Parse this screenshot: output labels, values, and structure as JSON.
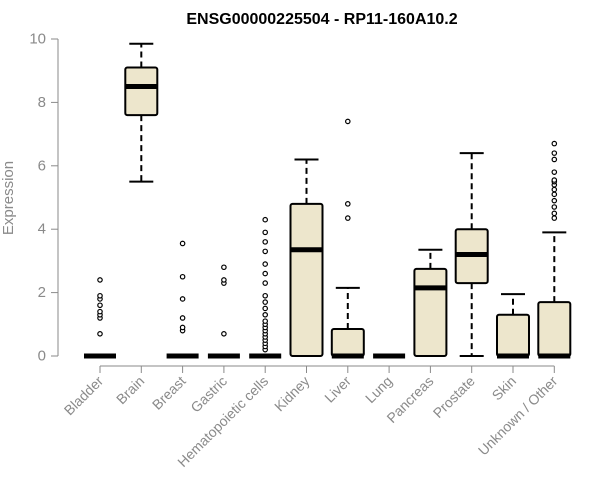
{
  "chart_data": {
    "type": "boxplot",
    "title": "ENSG00000225504 - RP11-160A10.2",
    "xlabel": "",
    "ylabel": "Expression",
    "ylim": [
      0,
      10
    ],
    "yticks": [
      "0",
      "2",
      "4",
      "6",
      "8",
      "10"
    ],
    "ytick_values": [
      0,
      2,
      4,
      6,
      8,
      10
    ],
    "box_fill": "#ede6cc",
    "categories": [
      "Bladder",
      "Brain",
      "Breast",
      "Gastric",
      "Hematopoietic cells",
      "Kidney",
      "Liver",
      "Lung",
      "Pancreas",
      "Prostate",
      "Skin",
      "Unknown / Other"
    ],
    "boxes": [
      {
        "q1": 0,
        "median": 0,
        "q3": 0,
        "whisker_low": 0,
        "whisker_high": 0,
        "outliers": [
          0.7,
          1.2,
          1.3,
          1.4,
          1.6,
          1.8,
          1.9,
          2.4
        ]
      },
      {
        "q1": 7.6,
        "median": 8.5,
        "q3": 9.1,
        "whisker_low": 5.5,
        "whisker_high": 9.85,
        "outliers": []
      },
      {
        "q1": 0,
        "median": 0,
        "q3": 0,
        "whisker_low": 0,
        "whisker_high": 0,
        "outliers": [
          0.8,
          0.9,
          1.2,
          1.8,
          2.5,
          3.55
        ]
      },
      {
        "q1": 0,
        "median": 0,
        "q3": 0,
        "whisker_low": 0,
        "whisker_high": 0,
        "outliers": [
          0.7,
          2.3,
          2.4,
          2.8
        ]
      },
      {
        "q1": 0,
        "median": 0,
        "q3": 0,
        "whisker_low": 0,
        "whisker_high": 0,
        "outliers": [
          0.2,
          0.3,
          0.4,
          0.5,
          0.6,
          0.7,
          0.8,
          0.9,
          1.0,
          1.1,
          1.3,
          1.5,
          1.7,
          1.9,
          2.3,
          2.6,
          2.9,
          3.3,
          3.6,
          3.9,
          4.3
        ]
      },
      {
        "q1": 0,
        "median": 3.35,
        "q3": 4.8,
        "whisker_low": 0,
        "whisker_high": 6.2,
        "outliers": []
      },
      {
        "q1": 0,
        "median": 0,
        "q3": 0.85,
        "whisker_low": 0,
        "whisker_high": 2.15,
        "outliers": [
          4.35,
          4.8,
          7.4
        ]
      },
      {
        "q1": 0,
        "median": 0,
        "q3": 0,
        "whisker_low": 0,
        "whisker_high": 0,
        "outliers": []
      },
      {
        "q1": 0,
        "median": 2.15,
        "q3": 2.75,
        "whisker_low": 0,
        "whisker_high": 3.35,
        "outliers": []
      },
      {
        "q1": 2.3,
        "median": 3.2,
        "q3": 4.0,
        "whisker_low": 0,
        "whisker_high": 6.4,
        "outliers": []
      },
      {
        "q1": 0,
        "median": 0,
        "q3": 1.3,
        "whisker_low": 0,
        "whisker_high": 1.95,
        "outliers": []
      },
      {
        "q1": 0,
        "median": 0,
        "q3": 1.7,
        "whisker_low": 0,
        "whisker_high": 3.9,
        "outliers": [
          4.35,
          4.5,
          4.7,
          4.9,
          5.1,
          5.25,
          5.4,
          5.5,
          5.55,
          5.8,
          6.2,
          6.4,
          6.7
        ]
      }
    ]
  }
}
